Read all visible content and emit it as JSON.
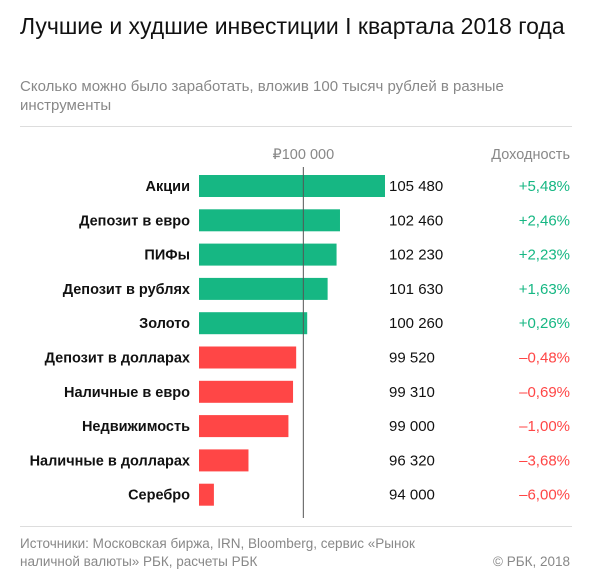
{
  "title": "Лучшие и худшие инвестиции I квартала 2018 года",
  "subtitle": "Сколько можно было заработать, вложив 100 тысяч рублей в разные инструменты",
  "source": "Источники: Московская биржа, IRN, Bloomberg, сервис «Рынок наличной валюты» РБК, расчеты РБК",
  "copyright": "© РБК, 2018",
  "colors": {
    "positive": "#16b783",
    "negative": "#ff4646",
    "baseline": "#555555"
  },
  "chart_data": {
    "type": "bar",
    "orientation": "horizontal",
    "baseline_value": 100000,
    "baseline_label": "₽100 000",
    "yield_header": "Доходность",
    "categories": [
      "Акции",
      "Депозит в евро",
      "ПИФы",
      "Депозит в рублях",
      "Золото",
      "Депозит в долларах",
      "Наличные в евро",
      "Недвижимость",
      "Наличные в долларах",
      "Серебро"
    ],
    "values": [
      105480,
      102460,
      102230,
      101630,
      100260,
      99520,
      99310,
      99000,
      96320,
      94000
    ],
    "value_labels": [
      "105 480",
      "102 460",
      "102 230",
      "101 630",
      "100 260",
      "99 520",
      "99 310",
      "99 000",
      "96 320",
      "94 000"
    ],
    "yields": [
      "+5,48%",
      "+2,46%",
      "+2,23%",
      "+1,63%",
      "+0,26%",
      "–0,48%",
      "–0,69%",
      "–1,00%",
      "–3,68%",
      "–6,00%"
    ]
  }
}
